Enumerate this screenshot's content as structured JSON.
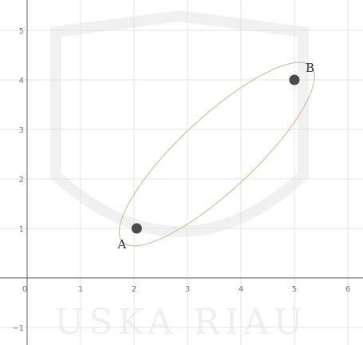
{
  "chart_data": {
    "type": "scatter",
    "title": "",
    "xlabel": "",
    "ylabel": "",
    "xlim": [
      -0.3,
      6.3
    ],
    "ylim": [
      -1.3,
      5.4
    ],
    "grid": true,
    "x_ticks": [
      {
        "value": 0,
        "label": "0"
      },
      {
        "value": 1,
        "label": "1"
      },
      {
        "value": 2,
        "label": "2"
      },
      {
        "value": 3,
        "label": "3"
      },
      {
        "value": 4,
        "label": "4"
      },
      {
        "value": 5,
        "label": "5"
      },
      {
        "value": 6,
        "label": "6"
      }
    ],
    "y_ticks": [
      {
        "value": 5,
        "label": "5"
      },
      {
        "value": 4,
        "label": "4"
      },
      {
        "value": 3,
        "label": "3"
      },
      {
        "value": 2,
        "label": "2"
      },
      {
        "value": 1,
        "label": "1"
      },
      {
        "value": -1,
        "label": "−1"
      }
    ],
    "points": [
      {
        "label": "A",
        "x": 2.05,
        "y": 1.0
      },
      {
        "label": "B",
        "x": 5.0,
        "y": 4.0
      }
    ],
    "ellipse": {
      "center": [
        3.55,
        2.5
      ],
      "semi_major": 2.5,
      "semi_minor": 0.72,
      "angle_deg": 45.5
    },
    "colors": {
      "curve": "#d9c2a8",
      "point": "#4a4a4a",
      "axis": "#7a7a7a",
      "grid": "#e4e4e4",
      "watermark": "#f1f1f1"
    },
    "watermark_text": "USKA RIAU"
  }
}
